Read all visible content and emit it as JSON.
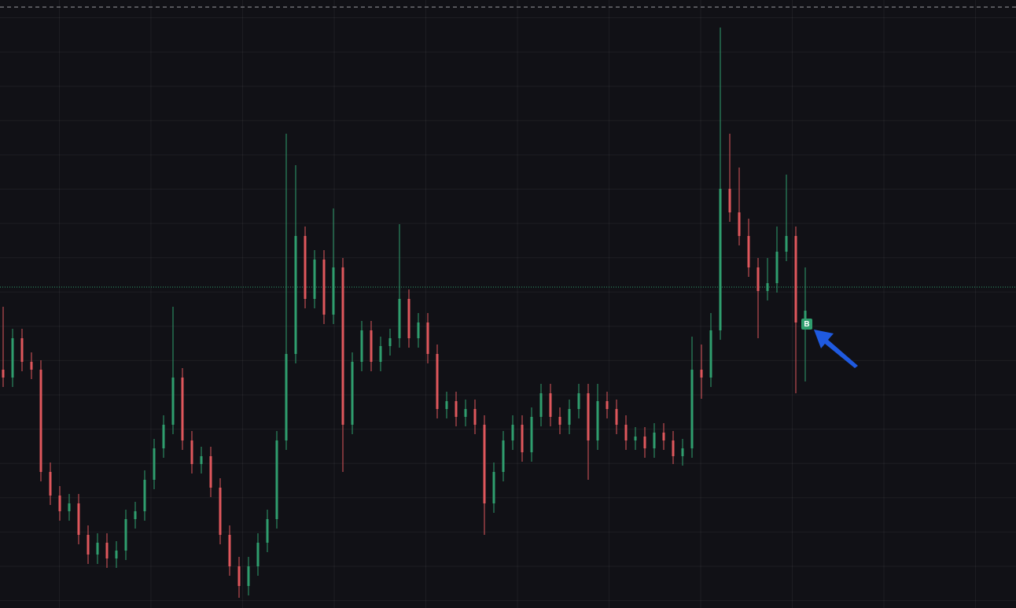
{
  "chart_data": {
    "type": "candlestick",
    "up_color": "#2f9e6e",
    "down_color": "#e0575c",
    "ylim": [
      0,
      773
    ],
    "buy_marker_label": "B",
    "open": [
      303,
      293,
      343,
      313,
      303,
      173,
      143,
      123,
      133,
      93,
      68,
      83,
      63,
      73,
      113,
      123,
      163,
      203,
      233,
      293,
      213,
      183,
      193,
      153,
      93,
      53,
      28,
      53,
      83,
      113,
      213,
      323,
      473,
      393,
      443,
      373,
      433,
      233,
      313,
      353,
      313,
      333,
      343,
      393,
      343,
      363,
      323,
      253,
      263,
      243,
      253,
      233,
      133,
      173,
      213,
      233,
      198,
      243,
      273,
      243,
      233,
      253,
      273,
      213,
      263,
      253,
      233,
      213,
      218,
      203,
      223,
      213,
      193,
      203,
      303,
      293,
      353,
      533,
      503,
      473,
      433,
      403,
      413,
      453,
      473,
      363
    ],
    "high": [
      383,
      355,
      355,
      325,
      315,
      185,
      155,
      145,
      145,
      105,
      95,
      95,
      85,
      125,
      135,
      175,
      215,
      245,
      383,
      305,
      225,
      205,
      205,
      165,
      105,
      65,
      65,
      95,
      125,
      225,
      603,
      563,
      485,
      455,
      455,
      508,
      445,
      325,
      365,
      365,
      345,
      355,
      488,
      405,
      375,
      375,
      335,
      275,
      275,
      265,
      265,
      245,
      185,
      225,
      245,
      245,
      255,
      285,
      285,
      255,
      265,
      285,
      285,
      285,
      275,
      265,
      245,
      230,
      230,
      235,
      235,
      225,
      215,
      345,
      335,
      375,
      738,
      603,
      560,
      495,
      445,
      445,
      485,
      551,
      485,
      433
    ],
    "low": [
      281,
      281,
      301,
      291,
      161,
      131,
      111,
      111,
      81,
      56,
      56,
      51,
      51,
      61,
      101,
      111,
      151,
      191,
      221,
      201,
      171,
      171,
      141,
      81,
      41,
      13,
      16,
      41,
      71,
      101,
      201,
      311,
      381,
      381,
      361,
      361,
      173,
      221,
      301,
      301,
      301,
      321,
      331,
      331,
      331,
      311,
      241,
      241,
      231,
      231,
      221,
      93,
      121,
      161,
      201,
      186,
      186,
      231,
      231,
      221,
      221,
      241,
      163,
      201,
      241,
      221,
      201,
      201,
      191,
      191,
      201,
      183,
      181,
      191,
      266,
      281,
      341,
      491,
      461,
      421,
      343,
      391,
      401,
      441,
      273,
      288
    ],
    "close": [
      293,
      343,
      313,
      303,
      173,
      143,
      123,
      133,
      93,
      68,
      83,
      63,
      73,
      113,
      123,
      163,
      203,
      233,
      293,
      213,
      183,
      193,
      153,
      93,
      53,
      28,
      53,
      83,
      113,
      213,
      323,
      473,
      393,
      443,
      373,
      433,
      233,
      313,
      353,
      313,
      333,
      343,
      393,
      343,
      363,
      323,
      253,
      263,
      243,
      253,
      233,
      133,
      173,
      213,
      233,
      198,
      243,
      273,
      243,
      233,
      253,
      273,
      213,
      263,
      253,
      233,
      213,
      218,
      203,
      223,
      213,
      193,
      203,
      303,
      293,
      353,
      533,
      503,
      473,
      433,
      403,
      413,
      453,
      473,
      363,
      378
    ]
  }
}
